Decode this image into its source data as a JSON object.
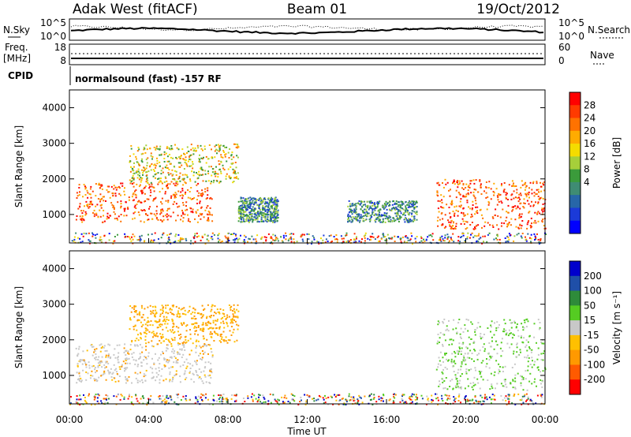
{
  "header": {
    "radar": "Adak West (fitACF)",
    "beam": "Beam 01",
    "date": "19/Oct/2012"
  },
  "status_panels": {
    "nsky_label": "N.Sky",
    "nsky_ticks": [
      "10^5",
      "10^0"
    ],
    "nsearch_label": "N.Search",
    "nsearch_ticks": [
      "10^5",
      "10^0"
    ],
    "freq_label": "Freq.",
    "freq_unit": "[MHz]",
    "freq_ticks": [
      "18",
      "8"
    ],
    "nave_label": "Nave",
    "nave_ticks": [
      "60",
      "0"
    ],
    "cpid_label": "CPID",
    "cpid_text": "normalsound (fast) -157 RF"
  },
  "chart_data": [
    {
      "type": "heatmap",
      "quantity": "power",
      "xlabel": "Time UT",
      "ylabel": "Slant Range [km]",
      "xlim": [
        "00:00",
        "24:00"
      ],
      "ylim": [
        200,
        4500
      ],
      "x_ticks": [
        "00:00",
        "04:00",
        "08:00",
        "12:00",
        "16:00",
        "20:00",
        "00:00"
      ],
      "y_ticks": [
        "1000",
        "2000",
        "3000",
        "4000"
      ],
      "colorbar": {
        "label": "Power [dB]",
        "ticks": [
          "28",
          "24",
          "20",
          "16",
          "12",
          "8",
          "4"
        ],
        "colors": [
          "#ff0000",
          "#ff3a00",
          "#ff7200",
          "#ffab00",
          "#f4dc00",
          "#a6cf3a",
          "#3b9b3b",
          "#3f8c73",
          "#2766a8",
          "#1b3ad8",
          "#0000ff"
        ]
      },
      "regions": [
        {
          "t": [
            0.3,
            7.2
          ],
          "r": [
            800,
            1900
          ],
          "level": "high"
        },
        {
          "t": [
            3.0,
            8.5
          ],
          "r": [
            1900,
            3000
          ],
          "level": "mid"
        },
        {
          "t": [
            8.5,
            10.5
          ],
          "r": [
            800,
            1500
          ],
          "level": "low"
        },
        {
          "t": [
            14.0,
            17.5
          ],
          "r": [
            800,
            1400
          ],
          "level": "low"
        },
        {
          "t": [
            18.5,
            24.0
          ],
          "r": [
            600,
            2000
          ],
          "level": "high"
        }
      ]
    },
    {
      "type": "heatmap",
      "quantity": "velocity",
      "xlabel": "Time UT",
      "ylabel": "Slant Range [km]",
      "xlim": [
        "00:00",
        "24:00"
      ],
      "ylim": [
        200,
        4500
      ],
      "x_ticks": [
        "00:00",
        "04:00",
        "08:00",
        "12:00",
        "16:00",
        "20:00",
        "00:00"
      ],
      "y_ticks": [
        "1000",
        "2000",
        "3000",
        "4000"
      ],
      "colorbar": {
        "label": "Velocity [m s⁻¹]",
        "ticks": [
          "200",
          "100",
          "50",
          "15",
          "-15",
          "-50",
          "-100",
          "-200"
        ],
        "colors": [
          "#0000cc",
          "#1f4fa8",
          "#2e8b3a",
          "#55cc22",
          "#c8c8c8",
          "#ffc000",
          "#ff9900",
          "#ff5a00",
          "#ff0000"
        ]
      },
      "regions": [
        {
          "t": [
            0.3,
            7.2
          ],
          "r": [
            800,
            1900
          ],
          "level": "ground"
        },
        {
          "t": [
            3.0,
            8.5
          ],
          "r": [
            1900,
            3000
          ],
          "level": "negative"
        },
        {
          "t": [
            18.5,
            24.0
          ],
          "r": [
            600,
            2600
          ],
          "level": "positive"
        }
      ]
    }
  ]
}
